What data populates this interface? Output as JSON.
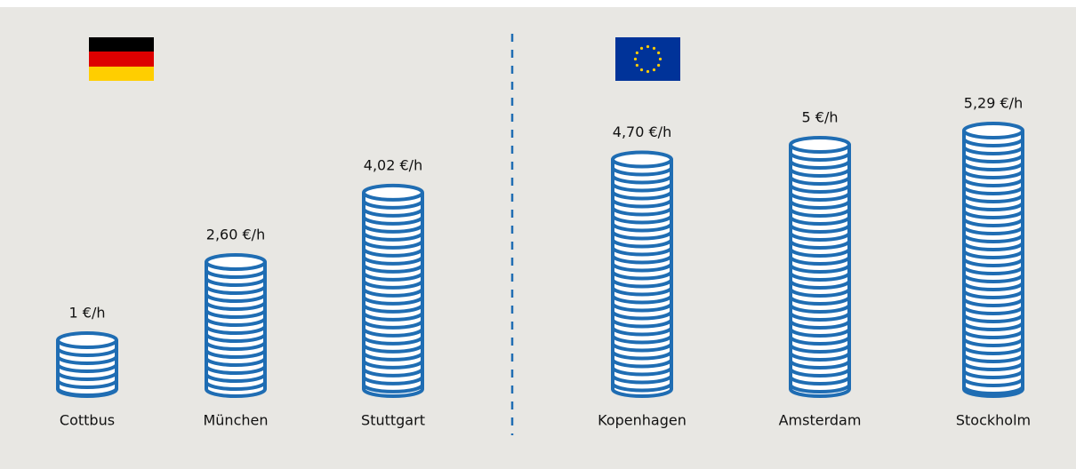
{
  "chart_data": {
    "type": "bar",
    "categories": [
      "Cottbus",
      "München",
      "Stuttgart",
      "Kopenhagen",
      "Amsterdam",
      "Stockholm"
    ],
    "values": [
      1,
      2.6,
      4.02,
      4.7,
      5,
      5.29
    ],
    "value_labels": [
      "1 €/h",
      "2,60 €/h",
      "4,02 €/h",
      "4,70 €/h",
      "5 €/h",
      "5,29 €/h"
    ],
    "color": "#1f6db3"
  }
}
